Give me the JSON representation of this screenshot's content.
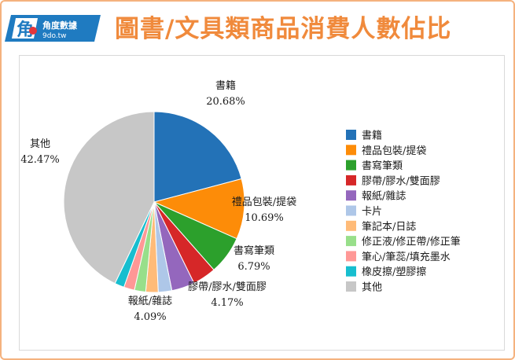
{
  "header": {
    "logo_cn": "角度數據",
    "logo_url": "9do.tw",
    "title": "圖書/文具類商品消費人數佔比"
  },
  "colors": {
    "accent": "#f08a3c",
    "logo_blue": "#1f7bc1",
    "logo_red": "#e4373c",
    "border": "#f5b27e"
  },
  "chart_data": {
    "type": "pie",
    "title": "",
    "categories": [
      "書籍",
      "禮品包裝/提袋",
      "書寫筆類",
      "膠帶/膠水/雙面膠",
      "報紙/雜誌",
      "卡片",
      "筆記本/日誌",
      "修正液/修正帶/修正筆",
      "筆心/筆蕊/填充墨水",
      "橡皮擦/塑膠擦",
      "其他"
    ],
    "values": [
      20.68,
      10.69,
      6.79,
      4.17,
      4.09,
      2.4,
      2.2,
      2.0,
      1.9,
      1.7,
      42.47
    ],
    "colors": [
      "#2372b7",
      "#fd8c08",
      "#2ca02c",
      "#d62728",
      "#9467bd",
      "#aec7e8",
      "#ffbb78",
      "#98df8a",
      "#ff9896",
      "#17becf",
      "#c7c7c7"
    ],
    "data_labels": [
      {
        "name": "書籍",
        "value": "20.68%"
      },
      {
        "name": "禮品包裝/提袋",
        "value": "10.69%"
      },
      {
        "name": "書寫筆類",
        "value": "6.79%"
      },
      {
        "name": "膠帶/膠水/雙面膠",
        "value": "4.17%"
      },
      {
        "name": "報紙/雜誌",
        "value": "4.09%"
      },
      {
        "name": "其他",
        "value": "42.47%"
      }
    ],
    "legend_position": "right"
  }
}
